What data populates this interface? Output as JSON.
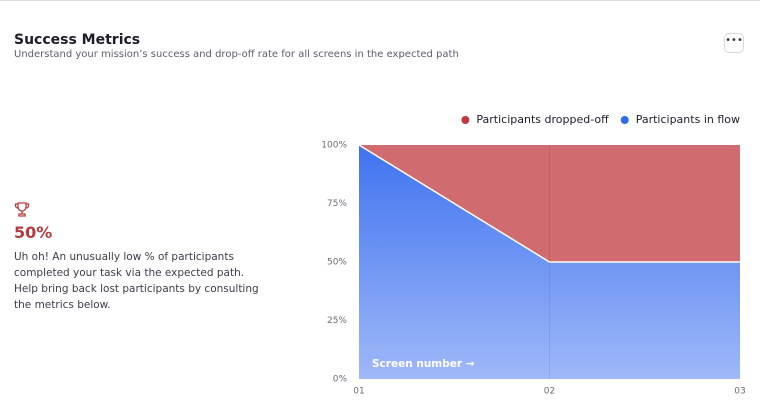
{
  "header": {
    "title": "Success Metrics",
    "subtitle": "Understand your mission’s success and drop-off rate for all screens in the expected path"
  },
  "summary": {
    "metric": "50%",
    "message": "Uh oh! An unusually low % of participants completed your task via the expected path. Help bring back lost participants by consulting the metrics below."
  },
  "chart_data": {
    "type": "stacked-area",
    "categories": [
      "01",
      "02",
      "03"
    ],
    "series": [
      {
        "name": "Participants dropped-off",
        "color": "#c0393f",
        "values": [
          0,
          50,
          50
        ]
      },
      {
        "name": "Participants in flow",
        "color": "#2f6ae8",
        "values": [
          100,
          50,
          50
        ]
      }
    ],
    "ylim": [
      0,
      100
    ],
    "yticks": [
      {
        "value": 0,
        "label": "0%"
      },
      {
        "value": 25,
        "label": "25%"
      },
      {
        "value": 50,
        "label": "50%"
      },
      {
        "value": 75,
        "label": "75%"
      },
      {
        "value": 100,
        "label": "100%"
      }
    ],
    "annotation": "Screen number →",
    "legend": "top-right",
    "grid": false
  }
}
